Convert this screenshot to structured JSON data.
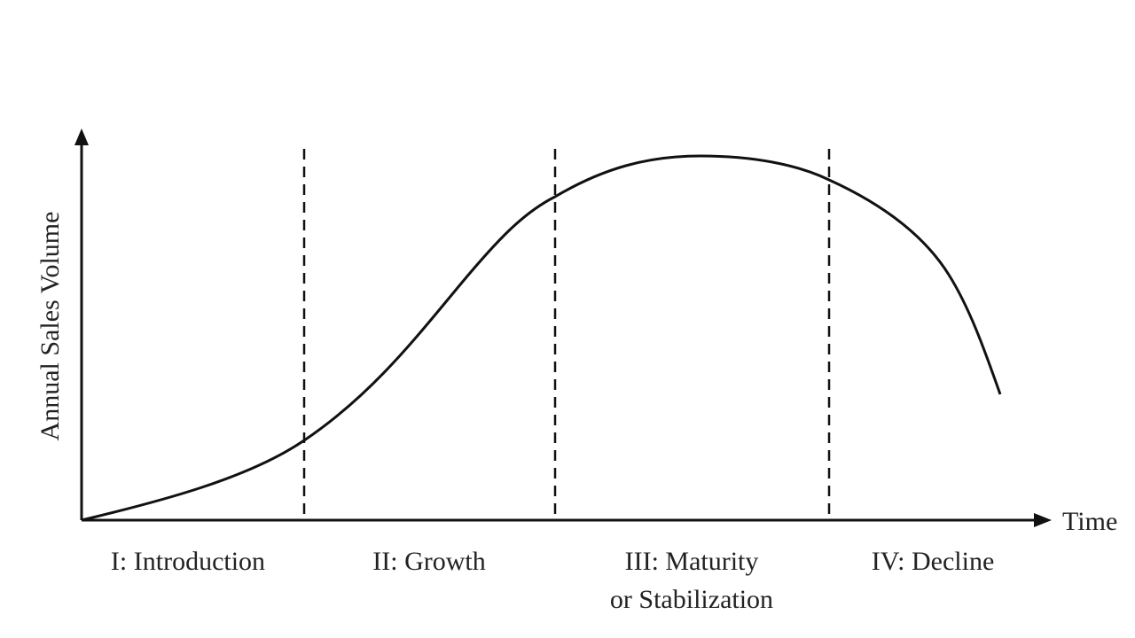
{
  "axes": {
    "y_label": "Annual Sales Volume",
    "x_label": "Time"
  },
  "stages": [
    {
      "label": "I: Introduction"
    },
    {
      "label": "II:  Growth"
    },
    {
      "label": "III:  Maturity",
      "label2": "or Stabilization"
    },
    {
      "label": "IV:  Decline"
    }
  ],
  "colors": {
    "line": "#111111",
    "text": "#222222"
  }
}
